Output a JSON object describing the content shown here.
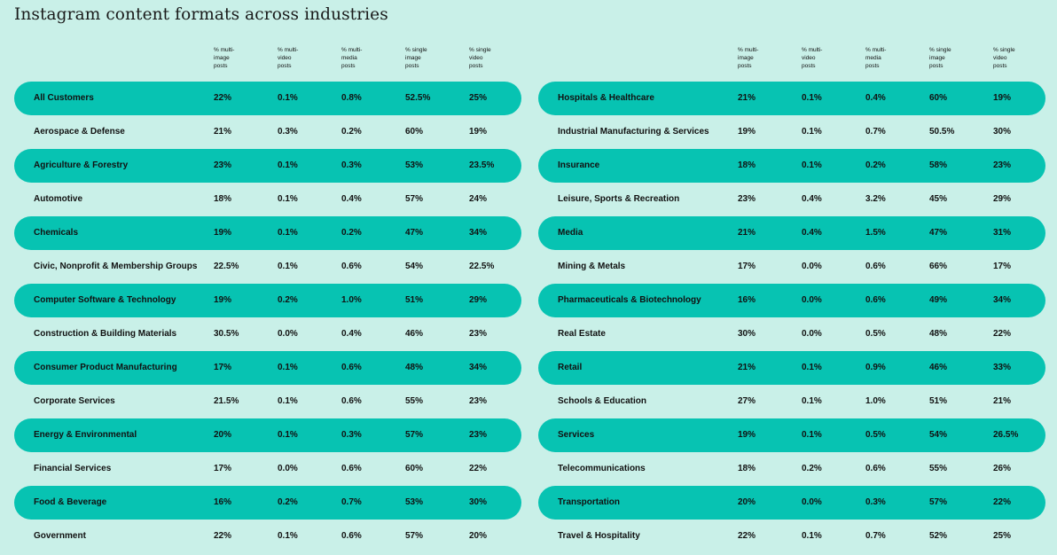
{
  "title": "Instagram content formats across industries",
  "chart_data": {
    "type": "table",
    "columns": [
      "% multi-\nimage\nposts",
      "% multi-\nvideo\nposts",
      "% multi-\nmedia\nposts",
      "% single\nimage\nposts",
      "% single\nvideo\nposts"
    ],
    "left_rows": [
      {
        "industry": "All Customers",
        "values": [
          "22%",
          "0.1%",
          "0.8%",
          "52.5%",
          "25%"
        ]
      },
      {
        "industry": "Aerospace & Defense",
        "values": [
          "21%",
          "0.3%",
          "0.2%",
          "60%",
          "19%"
        ]
      },
      {
        "industry": "Agriculture & Forestry",
        "values": [
          "23%",
          "0.1%",
          "0.3%",
          "53%",
          "23.5%"
        ]
      },
      {
        "industry": "Automotive",
        "values": [
          "18%",
          "0.1%",
          "0.4%",
          "57%",
          "24%"
        ]
      },
      {
        "industry": "Chemicals",
        "values": [
          "19%",
          "0.1%",
          "0.2%",
          "47%",
          "34%"
        ]
      },
      {
        "industry": "Civic, Nonprofit & Membership Groups",
        "values": [
          "22.5%",
          "0.1%",
          "0.6%",
          "54%",
          "22.5%"
        ]
      },
      {
        "industry": "Computer Software & Technology",
        "values": [
          "19%",
          "0.2%",
          "1.0%",
          "51%",
          "29%"
        ]
      },
      {
        "industry": "Construction & Building Materials",
        "values": [
          "30.5%",
          "0.0%",
          "0.4%",
          "46%",
          "23%"
        ]
      },
      {
        "industry": "Consumer Product Manufacturing",
        "values": [
          "17%",
          "0.1%",
          "0.6%",
          "48%",
          "34%"
        ]
      },
      {
        "industry": "Corporate Services",
        "values": [
          "21.5%",
          "0.1%",
          "0.6%",
          "55%",
          "23%"
        ]
      },
      {
        "industry": "Energy & Environmental",
        "values": [
          "20%",
          "0.1%",
          "0.3%",
          "57%",
          "23%"
        ]
      },
      {
        "industry": "Financial Services",
        "values": [
          "17%",
          "0.0%",
          "0.6%",
          "60%",
          "22%"
        ]
      },
      {
        "industry": "Food & Beverage",
        "values": [
          "16%",
          "0.2%",
          "0.7%",
          "53%",
          "30%"
        ]
      },
      {
        "industry": "Government",
        "values": [
          "22%",
          "0.1%",
          "0.6%",
          "57%",
          "20%"
        ]
      }
    ],
    "right_rows": [
      {
        "industry": "Hospitals & Healthcare",
        "values": [
          "21%",
          "0.1%",
          "0.4%",
          "60%",
          "19%"
        ]
      },
      {
        "industry": "Industrial Manufacturing & Services",
        "values": [
          "19%",
          "0.1%",
          "0.7%",
          "50.5%",
          "30%"
        ]
      },
      {
        "industry": "Insurance",
        "values": [
          "18%",
          "0.1%",
          "0.2%",
          "58%",
          "23%"
        ]
      },
      {
        "industry": "Leisure, Sports & Recreation",
        "values": [
          "23%",
          "0.4%",
          "3.2%",
          "45%",
          "29%"
        ]
      },
      {
        "industry": "Media",
        "values": [
          "21%",
          "0.4%",
          "1.5%",
          "47%",
          "31%"
        ]
      },
      {
        "industry": "Mining & Metals",
        "values": [
          "17%",
          "0.0%",
          "0.6%",
          "66%",
          "17%"
        ]
      },
      {
        "industry": "Pharmaceuticals & Biotechnology",
        "values": [
          "16%",
          "0.0%",
          "0.6%",
          "49%",
          "34%"
        ]
      },
      {
        "industry": "Real Estate",
        "values": [
          "30%",
          "0.0%",
          "0.5%",
          "48%",
          "22%"
        ]
      },
      {
        "industry": "Retail",
        "values": [
          "21%",
          "0.1%",
          "0.9%",
          "46%",
          "33%"
        ]
      },
      {
        "industry": "Schools & Education",
        "values": [
          "27%",
          "0.1%",
          "1.0%",
          "51%",
          "21%"
        ]
      },
      {
        "industry": "Services",
        "values": [
          "19%",
          "0.1%",
          "0.5%",
          "54%",
          "26.5%"
        ]
      },
      {
        "industry": "Telecommunications",
        "values": [
          "18%",
          "0.2%",
          "0.6%",
          "55%",
          "26%"
        ]
      },
      {
        "industry": "Transportation",
        "values": [
          "20%",
          "0.0%",
          "0.3%",
          "57%",
          "22%"
        ]
      },
      {
        "industry": "Travel & Hospitality",
        "values": [
          "22%",
          "0.1%",
          "0.7%",
          "52%",
          "25%"
        ]
      }
    ]
  },
  "colors": {
    "background": "#c9f0e8",
    "band": "#07c3b2",
    "text": "#111111"
  }
}
